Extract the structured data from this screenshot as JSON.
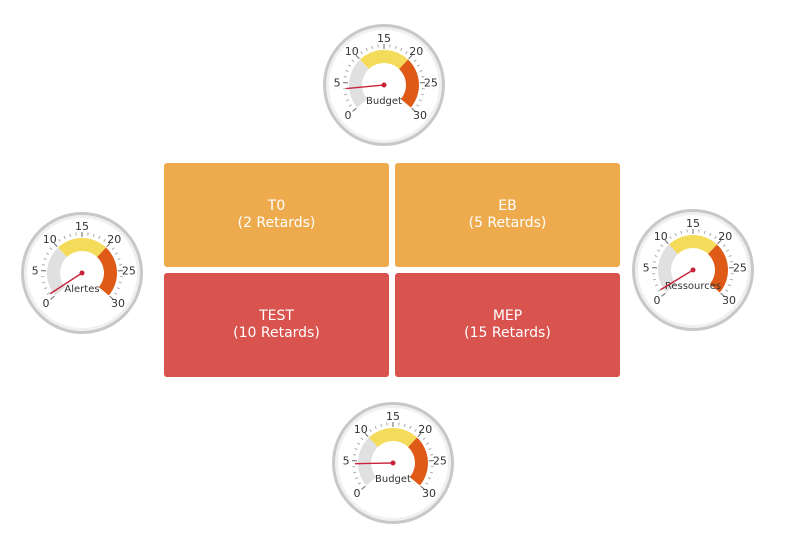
{
  "colors": {
    "tile_warning": "#eeab4d",
    "tile_danger": "#d9534f",
    "band_green": "#e0e0e0",
    "band_yellow": "#f4dc5a",
    "band_red": "#e05a17",
    "needle": "#c8233a",
    "ring_outer": "#c8c8c8",
    "ring_inner": "#f0f0f0"
  },
  "tiles": [
    {
      "id": "t0",
      "title": "T0",
      "subtitle": "(2 Retards)",
      "status": "warning"
    },
    {
      "id": "eb",
      "title": "EB",
      "subtitle": "(5 Retards)",
      "status": "warning"
    },
    {
      "id": "test",
      "title": "TEST",
      "subtitle": "(10 Retards)",
      "status": "danger"
    },
    {
      "id": "mep",
      "title": "MEP",
      "subtitle": "(15 Retards)",
      "status": "danger"
    }
  ],
  "gauges": [
    {
      "id": "top",
      "label": "Budget",
      "value": 4,
      "min": 0,
      "max": 30,
      "tick_labels": [
        "0",
        "5",
        "10",
        "15",
        "20",
        "25",
        "30"
      ],
      "bands": [
        {
          "from": 0,
          "to": 10,
          "color": "band_green"
        },
        {
          "from": 10,
          "to": 20,
          "color": "band_yellow"
        },
        {
          "from": 20,
          "to": 30,
          "color": "band_red"
        }
      ]
    },
    {
      "id": "left",
      "label": "Alertes",
      "value": 0.8,
      "min": 0,
      "max": 30,
      "tick_labels": [
        "0",
        "5",
        "10",
        "15",
        "20",
        "25",
        "30"
      ],
      "bands": [
        {
          "from": 0,
          "to": 10,
          "color": "band_green"
        },
        {
          "from": 10,
          "to": 20,
          "color": "band_yellow"
        },
        {
          "from": 20,
          "to": 30,
          "color": "band_red"
        }
      ]
    },
    {
      "id": "right",
      "label": "Ressources",
      "value": 1,
      "min": 0,
      "max": 30,
      "tick_labels": [
        "0",
        "5",
        "10",
        "15",
        "20",
        "25",
        "30"
      ],
      "bands": [
        {
          "from": 0,
          "to": 10,
          "color": "band_green"
        },
        {
          "from": 10,
          "to": 20,
          "color": "band_yellow"
        },
        {
          "from": 20,
          "to": 30,
          "color": "band_red"
        }
      ]
    },
    {
      "id": "bottom",
      "label": "Budget",
      "value": 4.5,
      "min": 0,
      "max": 30,
      "tick_labels": [
        "0",
        "5",
        "10",
        "15",
        "20",
        "25",
        "30"
      ],
      "bands": [
        {
          "from": 0,
          "to": 10,
          "color": "band_green"
        },
        {
          "from": 10,
          "to": 20,
          "color": "band_yellow"
        },
        {
          "from": 20,
          "to": 30,
          "color": "band_red"
        }
      ]
    }
  ]
}
